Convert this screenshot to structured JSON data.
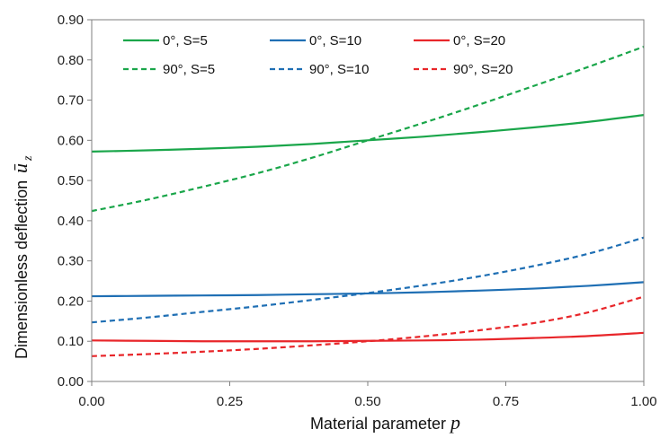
{
  "chart_data": {
    "type": "line",
    "xlabel": "Material parameter",
    "xlabel_symbol": "p",
    "ylabel": "Dimensionless deflection",
    "ylabel_symbol": "ū",
    "ylabel_subscript": "z",
    "xlim": [
      0,
      1
    ],
    "ylim": [
      0,
      0.9
    ],
    "x_ticks": [
      "0.00",
      "0.25",
      "0.50",
      "0.75",
      "1.00"
    ],
    "y_ticks": [
      "0.00",
      "0.10",
      "0.20",
      "0.30",
      "0.40",
      "0.50",
      "0.60",
      "0.70",
      "0.80",
      "0.90"
    ],
    "grid": false,
    "legend_position": "top",
    "x": [
      0,
      0.1,
      0.2,
      0.3,
      0.4,
      0.5,
      0.6,
      0.7,
      0.8,
      0.9,
      1.0
    ],
    "series": [
      {
        "name": "0°, S=5",
        "color": "#1aa64a",
        "dash": "solid",
        "values": [
          0.572,
          0.575,
          0.579,
          0.584,
          0.591,
          0.6,
          0.609,
          0.62,
          0.632,
          0.646,
          0.663
        ]
      },
      {
        "name": "0°, S=10",
        "color": "#1f6fb4",
        "dash": "solid",
        "values": [
          0.212,
          0.213,
          0.214,
          0.215,
          0.217,
          0.219,
          0.222,
          0.226,
          0.231,
          0.238,
          0.247
        ]
      },
      {
        "name": "0°, S=20",
        "color": "#e8262a",
        "dash": "solid",
        "values": [
          0.102,
          0.101,
          0.1,
          0.1,
          0.1,
          0.101,
          0.102,
          0.104,
          0.108,
          0.113,
          0.121
        ]
      },
      {
        "name": "90°, S=5",
        "color": "#1aa64a",
        "dash": "dashed",
        "values": [
          0.424,
          0.452,
          0.484,
          0.518,
          0.557,
          0.6,
          0.643,
          0.688,
          0.735,
          0.783,
          0.833
        ]
      },
      {
        "name": "90°, S=10",
        "color": "#1f6fb4",
        "dash": "dashed",
        "values": [
          0.147,
          0.159,
          0.173,
          0.187,
          0.203,
          0.22,
          0.239,
          0.261,
          0.287,
          0.318,
          0.358
        ]
      },
      {
        "name": "90°, S=20",
        "color": "#e8262a",
        "dash": "dashed",
        "values": [
          0.063,
          0.068,
          0.074,
          0.081,
          0.09,
          0.1,
          0.112,
          0.127,
          0.145,
          0.172,
          0.211
        ]
      }
    ]
  }
}
